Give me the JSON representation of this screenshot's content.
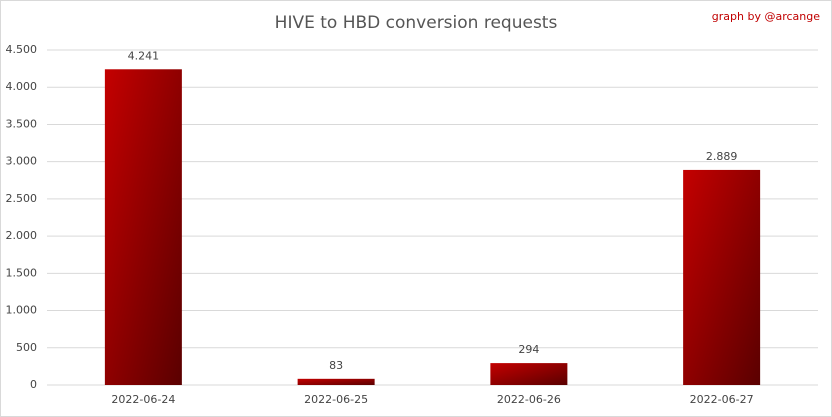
{
  "chart_data": {
    "type": "bar",
    "title": "HIVE to HBD conversion requests",
    "annotation": "graph by @arcange",
    "categories": [
      "2022-06-24",
      "2022-06-25",
      "2022-06-26",
      "2022-06-27"
    ],
    "values": [
      4241,
      83,
      294,
      2889
    ],
    "value_labels": [
      "4.241",
      "83",
      "294",
      "2.889"
    ],
    "color": "#c40000",
    "ylim": [
      0,
      4500
    ],
    "yticks": [
      0,
      500,
      {
        "value": 1000,
        "label": "1.000"
      },
      {
        "value": 1500,
        "label": "1.500"
      },
      {
        "value": 2000,
        "label": "2.000"
      },
      {
        "value": 2500,
        "label": "2.500"
      },
      {
        "value": 3000,
        "label": "3.000"
      },
      {
        "value": 3500,
        "label": "3.500"
      },
      {
        "value": 4000,
        "label": "4.000"
      },
      {
        "value": 4500,
        "label": "4.500"
      }
    ],
    "grid": true
  }
}
